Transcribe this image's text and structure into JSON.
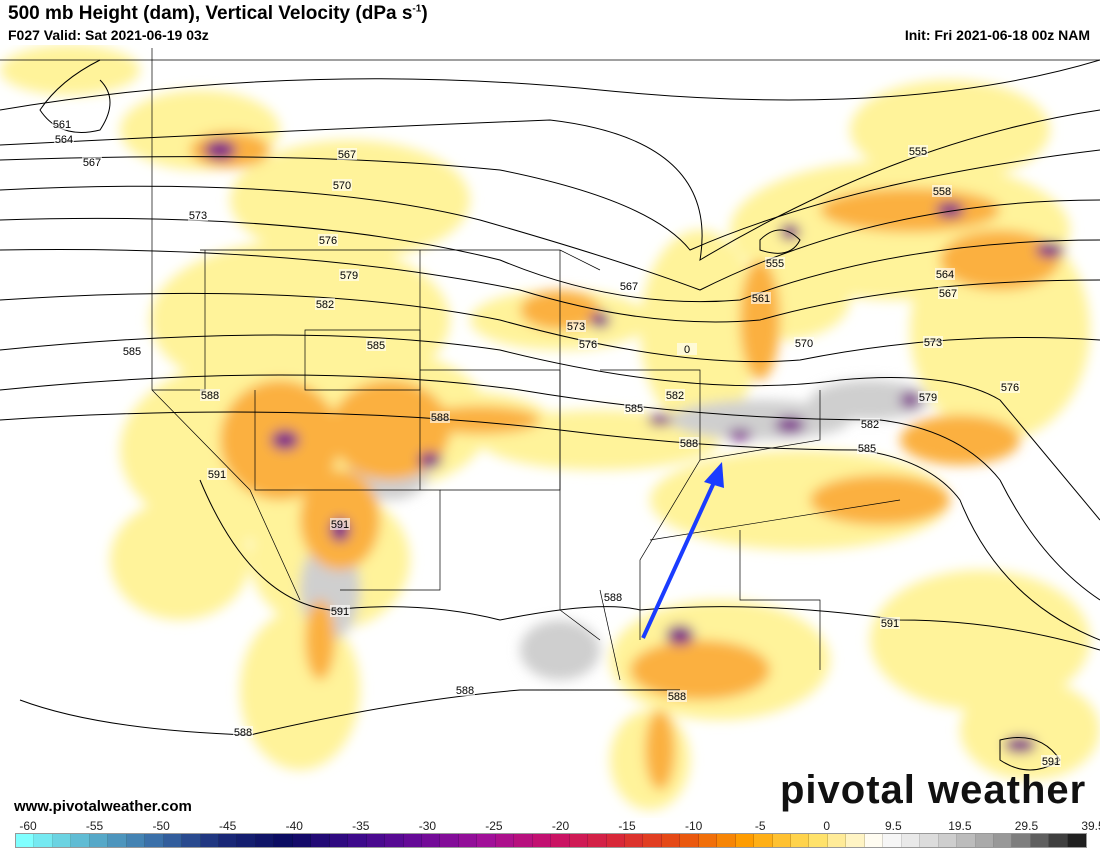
{
  "header": {
    "title": "500 mb Height (dam), Vertical Velocity (dPa s",
    "title_sup": "-1",
    "title_end": ")",
    "valid": "F027 Valid: Sat 2021-06-19 03z",
    "init": "Init: Fri 2021-06-18 00z NAM"
  },
  "footer": {
    "website": "www.pivotalweather.com",
    "brand": "pivotal weather"
  },
  "colorbar": {
    "tick_labels": [
      "-60",
      "-55",
      "-50",
      "-45",
      "-40",
      "-35",
      "-30",
      "-25",
      "-20",
      "-15",
      "-10",
      "-5",
      "0",
      "9.5",
      "19.5",
      "29.5",
      "39.5"
    ],
    "stops": [
      "#80ffff",
      "#5ab0cc",
      "#3a6ea8",
      "#1a2a78",
      "#0a0a60",
      "#3a0a8a",
      "#6a0a98",
      "#a0109a",
      "#c8106a",
      "#d82838",
      "#e85010",
      "#ffa000",
      "#ffe060",
      "#ffffff",
      "#d0d0d0",
      "#909090",
      "#202020"
    ]
  },
  "map": {
    "colors": {
      "yellow": "#fff39a",
      "orange": "#fbb040",
      "red": "#e06018",
      "purple": "#7a1a8a",
      "grey": "#cfcfcf",
      "arrow": "#1a3cff",
      "contour": "#000000",
      "border": "#000000"
    },
    "contour_labels": [
      "561",
      "564",
      "567",
      "567",
      "570",
      "573",
      "576",
      "579",
      "582",
      "585",
      "585",
      "588",
      "591",
      "591",
      "591",
      "588",
      "588",
      "588",
      "588",
      "591",
      "591",
      "555",
      "558",
      "555",
      "561",
      "564",
      "567",
      "567",
      "573",
      "576",
      "570",
      "573",
      "576",
      "579",
      "582",
      "585",
      "585",
      "582",
      "588",
      "588",
      "0"
    ],
    "annotation": "blue-arrow"
  }
}
